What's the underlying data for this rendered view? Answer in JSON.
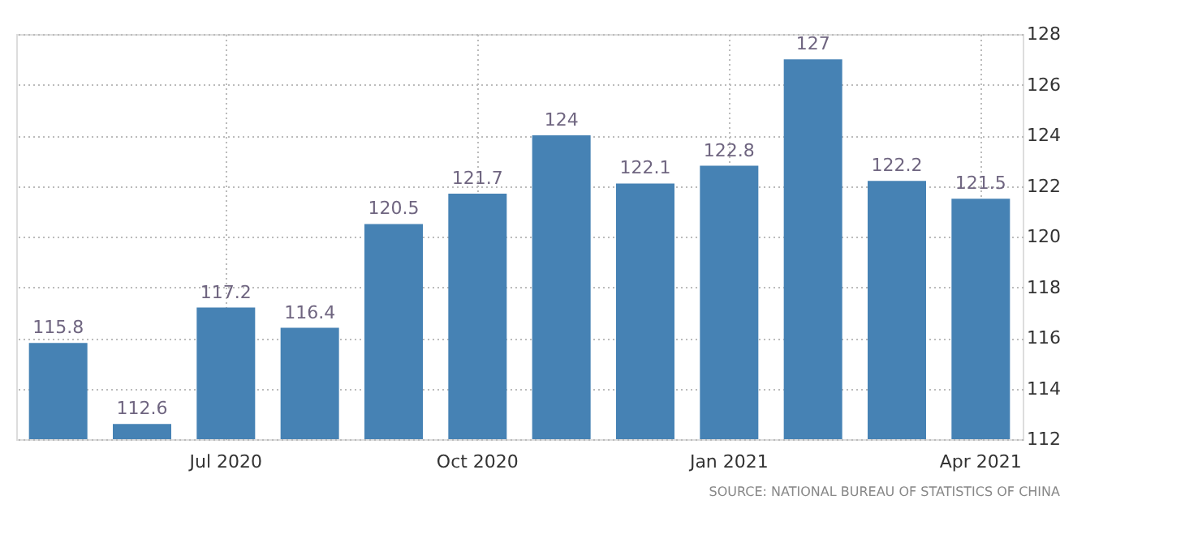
{
  "chart_data": {
    "type": "bar",
    "categories": [
      null,
      null,
      "Jul 2020",
      null,
      null,
      "Oct 2020",
      null,
      null,
      "Jan 2021",
      null,
      null,
      "Apr 2021"
    ],
    "values": [
      115.8,
      112.6,
      117.2,
      116.4,
      120.5,
      121.7,
      124,
      122.1,
      122.8,
      127,
      122.2,
      121.5
    ],
    "color": "#4682b4",
    "ylim": [
      112,
      128
    ],
    "yticks": [
      112,
      114,
      116,
      118,
      120,
      122,
      124,
      126,
      128
    ],
    "grid": true,
    "data_labels": true,
    "annotations": [
      "SOURCE: NATIONAL BUREAU OF STATISTICS OF CHINA"
    ]
  }
}
